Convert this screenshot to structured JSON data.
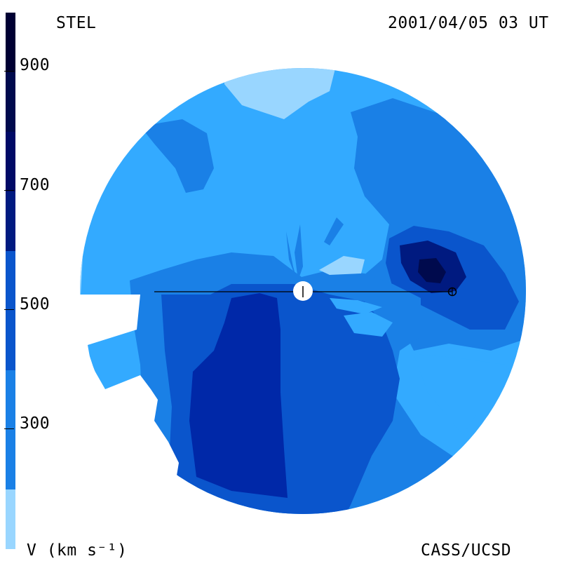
{
  "header": {
    "left_label": "STEL",
    "timestamp": "2001/04/05 03 UT"
  },
  "footer": {
    "unit_label": "V (km s⁻¹)",
    "credit": "CASS/UCSD"
  },
  "colorbar": {
    "ticks": [
      "900",
      "700",
      "500",
      "300"
    ],
    "colors": [
      "#000033",
      "#000a4d",
      "#001a80",
      "#0028a8",
      "#0a55cc",
      "#1a80e6",
      "#33aaff",
      "#99d6ff"
    ]
  },
  "palette": {
    "very_light": "#99d6ff",
    "light": "#33aaff",
    "mid": "#1a80e6",
    "medium_dark": "#0a55cc",
    "dark": "#0028a8",
    "darker": "#001a80"
  }
}
